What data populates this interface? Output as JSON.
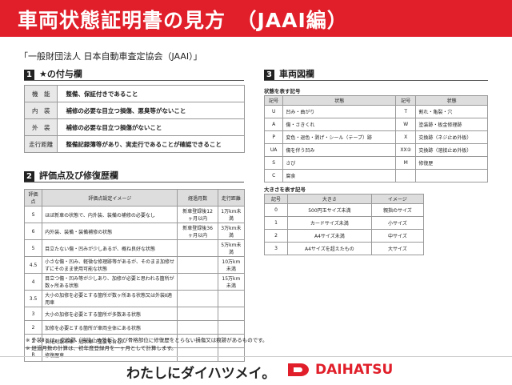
{
  "header": {
    "title": "車両状態証明書の見方　（JAAI編）"
  },
  "subtitle": "「一般財団法人 日本自動車査定協会（JAAI）」",
  "section1": {
    "number": "1",
    "title": "★の付与欄",
    "rows": [
      [
        "機　能",
        "整備、保証付きであること"
      ],
      [
        "内　装",
        "補修の必要な目立つ損傷、悪臭等がないこと"
      ],
      [
        "外　装",
        "補修の必要な目立つ損傷がないこと"
      ],
      [
        "走行距離",
        "整備記録簿等があり、実走行であることが確認できること"
      ]
    ]
  },
  "section2": {
    "number": "2",
    "title": "評価点及び修復歴欄",
    "columns": [
      "評価点",
      "評価点設定イメージ",
      "経過月数",
      "走行距離"
    ],
    "rows": [
      [
        "S",
        "ほぼ新車の状態で、内外装、装備の補修の必要なし",
        "新車登録後12ヶ月以内",
        "1万km未満"
      ],
      [
        "6",
        "内外装、装備・装備補修の状態",
        "新車登録後36ヶ月以内",
        "3万km未満"
      ],
      [
        "5",
        "目立たない傷・凹みが少しあるが、概ね良好な状態",
        null,
        "5万km未満"
      ],
      [
        "4.5",
        "小さな傷・凹み、軽微な修理跡等があるが、そのまま加修せずにそのまま使用可能な状態",
        null,
        "10万km未満"
      ],
      [
        "4",
        "目立つ傷・凹み等が少しあり、加修が必要と思われる箇所が数ヶ所ある状態",
        null,
        "15万km未満"
      ],
      [
        "3.5",
        "大小の加修を必要とする箇所が数ヶ所ある状態又は外装Ⅱ適用車",
        null,
        null
      ],
      [
        "3",
        "大小の加修を必要とする箇所が多数ある状態",
        null,
        null
      ],
      [
        "2",
        "加修を必要とする箇所が車両全体にある状態",
        null,
        null
      ],
      [
        "1",
        "消化剤散布車・冠水車（重要を含む）",
        null,
        null
      ],
      [
        "R",
        "修復歴車",
        null,
        null
      ]
    ],
    "notes": [
      "※ 外装Ⅱとは、交換跡（溶接止め外板）及び骨格部位に修復歴をとらない損傷又は痕跡があるものです。",
      "※ 経過月数の計算は、初年度登録月を一ヶ月として計算します。"
    ]
  },
  "section3": {
    "number": "3",
    "title": "車両図欄",
    "condition_caption": "状態を表す記号",
    "condition_columns": [
      "記号",
      "状態",
      "記号",
      "状態"
    ],
    "condition_rows": [
      [
        "U",
        "凹み・曲がり",
        "T",
        "割れ・亀裂・穴"
      ],
      [
        "A",
        "傷・さきくれ",
        "W",
        "塗装跡・板金修理跡"
      ],
      [
        "P",
        "変色・退色・剥げ・シール（テープ）跡",
        "X",
        "交換跡（ネジ止め外板）"
      ],
      [
        "UA",
        "傷を伴う凹み",
        "XX②",
        "交換跡（溶接止め外板）"
      ],
      [
        "S",
        "さび",
        "M",
        "修復歴"
      ],
      [
        "C",
        "腐食",
        null,
        null
      ]
    ],
    "size_caption": "大きさを表す記号",
    "size_columns": [
      "記号",
      "大きさ",
      "イメージ"
    ],
    "size_rows": [
      [
        "0",
        "500円玉サイズ未満",
        "親指のサイズ"
      ],
      [
        "1",
        "カードサイズ未満",
        "小サイズ"
      ],
      [
        "2",
        "A4サイズ未満",
        "中サイズ"
      ],
      [
        "3",
        "A4サイズを超えたもの",
        "大サイズ"
      ]
    ]
  },
  "footer": {
    "slogan": "わたしにダイハツメイ。",
    "brand": "DAIHATSU"
  }
}
